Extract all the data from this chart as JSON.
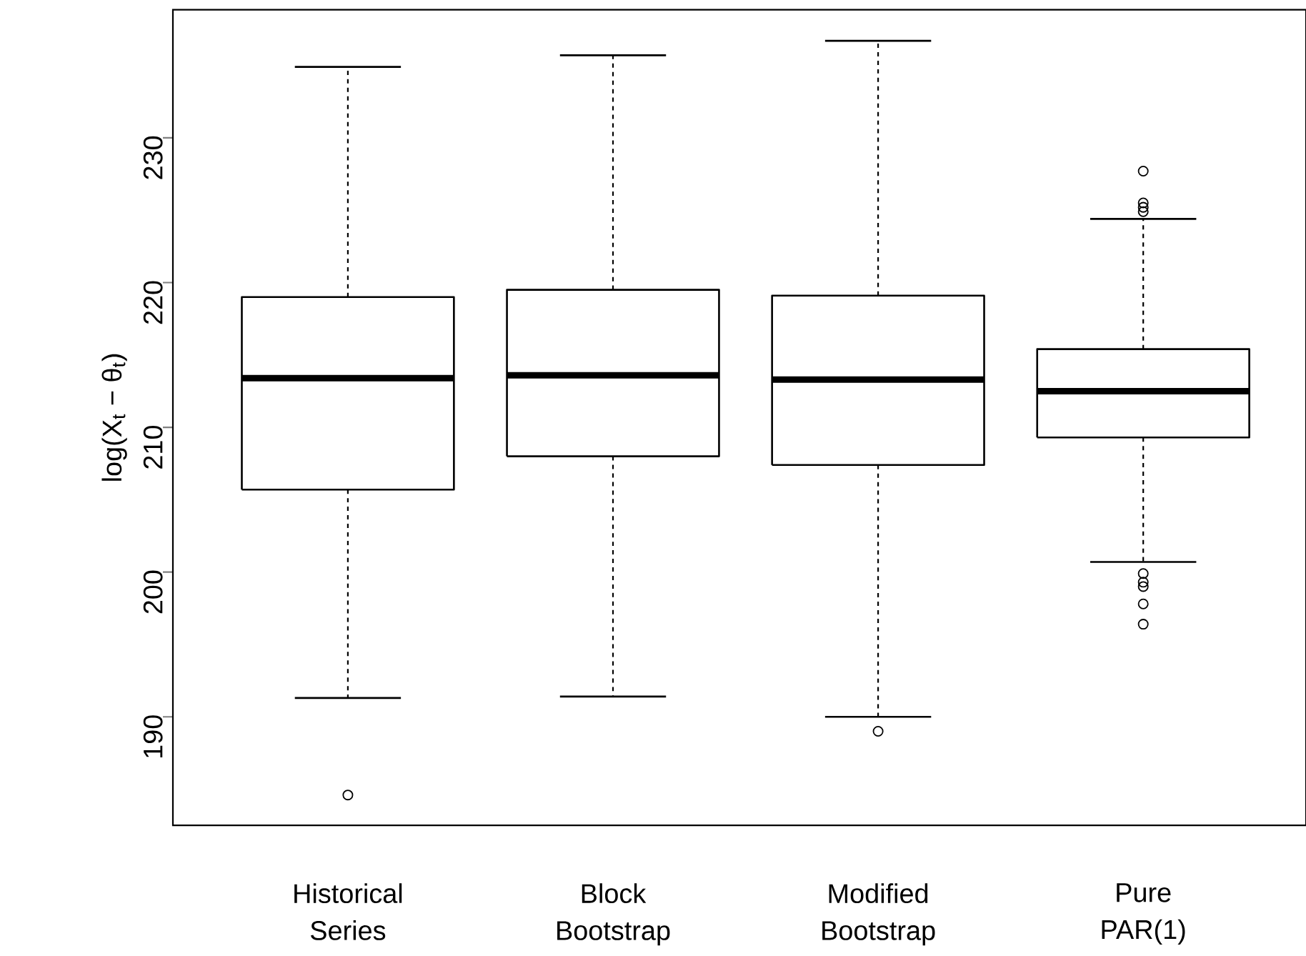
{
  "chart_data": {
    "type": "box",
    "categories": [
      "Historical Series",
      "Block Bootstrap",
      "Modified Bootstrap",
      "Pure PAR(1)"
    ],
    "ylabel": "log(X$_{t}$ − θ$_{t}$)",
    "ylim": [
      182.5,
      238.85
    ],
    "yticks": [
      190,
      200,
      210,
      220,
      230
    ],
    "color": "#000000",
    "boxes": [
      {
        "low": 191.3,
        "q1": 205.7,
        "median": 213.4,
        "q3": 219.0,
        "high": 234.9,
        "outliers": [
          184.6
        ]
      },
      {
        "low": 191.4,
        "q1": 208.0,
        "median": 213.6,
        "q3": 219.5,
        "high": 235.7
      },
      {
        "low": 190.0,
        "q1": 207.4,
        "median": 213.3,
        "q3": 219.1,
        "high": 236.7,
        "outliers": [
          189.0
        ]
      },
      {
        "low": 200.7,
        "q1": 209.3,
        "median": 212.5,
        "q3": 215.4,
        "high": 224.4,
        "outliers": [
          227.7,
          225.5,
          225.2,
          224.9,
          199.9,
          199.3,
          199.0,
          197.8,
          196.4
        ]
      }
    ]
  }
}
